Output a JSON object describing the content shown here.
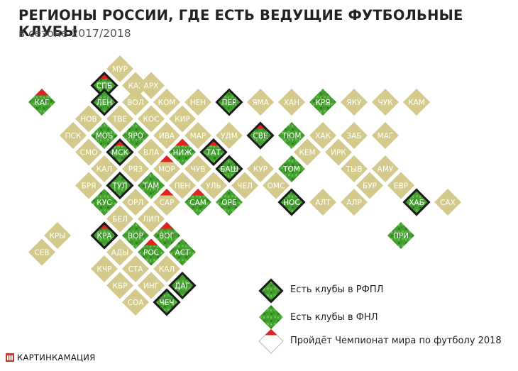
{
  "title": "РЕГИОНЫ РОССИИ, ГДЕ ЕСТЬ ВЕДУЩИЕ ФУТБОЛЬНЫЕ КЛУБЫ",
  "subtitle": "в сезоне 2017/2018",
  "legend": {
    "rfpl": "Есть клубы в РФПЛ",
    "fnl": "Есть клубы в ФНЛ",
    "wc": "Пройдёт Чемпионат мира по футболу 2018"
  },
  "footer": "КАРТИНКАМАЦИЯ",
  "colors": {
    "plain": "#d3ca8c",
    "green": "#45a032",
    "green_dark": "#2f7d22",
    "red": "#e0231f",
    "border": "#1b1b1b"
  },
  "regions": [
    {
      "label": "МУР",
      "col": 0,
      "row": 0,
      "status": "plain"
    },
    {
      "label": "СПБ",
      "col": -1,
      "row": 1,
      "status": "rfpl",
      "wc": true
    },
    {
      "label": "КАР",
      "col": 1,
      "row": 1,
      "status": "plain"
    },
    {
      "label": "АРХ",
      "col": 2,
      "row": 1,
      "status": "plain"
    },
    {
      "label": "КАГ",
      "col": -5,
      "row": 2,
      "status": "fnl",
      "wc": true
    },
    {
      "label": "ЛЕН",
      "col": -1,
      "row": 2,
      "status": "rfpl"
    },
    {
      "label": "ВОЛ",
      "col": 1,
      "row": 2,
      "status": "plain"
    },
    {
      "label": "КОМ",
      "col": 3,
      "row": 2,
      "status": "plain"
    },
    {
      "label": "НЕН",
      "col": 5,
      "row": 2,
      "status": "plain"
    },
    {
      "label": "ПЕР",
      "col": 7,
      "row": 2,
      "status": "rfpl"
    },
    {
      "label": "ЯМА",
      "col": 9,
      "row": 2,
      "status": "plain"
    },
    {
      "label": "ХАН",
      "col": 11,
      "row": 2,
      "status": "plain"
    },
    {
      "label": "КРЯ",
      "col": 13,
      "row": 2,
      "status": "fnl"
    },
    {
      "label": "ЯКУ",
      "col": 15,
      "row": 2,
      "status": "plain"
    },
    {
      "label": "ЧУК",
      "col": 17,
      "row": 2,
      "status": "plain"
    },
    {
      "label": "КАМ",
      "col": 19,
      "row": 2,
      "status": "plain"
    },
    {
      "label": "НОВ",
      "col": -2,
      "row": 3,
      "status": "plain"
    },
    {
      "label": "ТВЕ",
      "col": 0,
      "row": 3,
      "status": "plain"
    },
    {
      "label": "КОС",
      "col": 2,
      "row": 3,
      "status": "plain"
    },
    {
      "label": "КИР",
      "col": 4,
      "row": 3,
      "status": "plain"
    },
    {
      "label": "ПСК",
      "col": -3,
      "row": 4,
      "status": "plain"
    },
    {
      "label": "МОБ",
      "col": -1,
      "row": 4,
      "status": "fnl"
    },
    {
      "label": "ЯРО",
      "col": 1,
      "row": 4,
      "status": "fnl"
    },
    {
      "label": "ИВА",
      "col": 3,
      "row": 4,
      "status": "plain"
    },
    {
      "label": "МАР",
      "col": 5,
      "row": 4,
      "status": "plain"
    },
    {
      "label": "УДМ",
      "col": 7,
      "row": 4,
      "status": "plain"
    },
    {
      "label": "СВЕ",
      "col": 9,
      "row": 4,
      "status": "rfpl",
      "wc": true
    },
    {
      "label": "ТЮМ",
      "col": 11,
      "row": 4,
      "status": "fnl"
    },
    {
      "label": "ХАК",
      "col": 13,
      "row": 4,
      "status": "plain"
    },
    {
      "label": "ЗАБ",
      "col": 15,
      "row": 4,
      "status": "plain"
    },
    {
      "label": "МАГ",
      "col": 17,
      "row": 4,
      "status": "plain"
    },
    {
      "label": "СМО",
      "col": -2,
      "row": 5,
      "status": "plain"
    },
    {
      "label": "МСК",
      "col": 0,
      "row": 5,
      "status": "rfpl",
      "wc": true
    },
    {
      "label": "ВЛА",
      "col": 2,
      "row": 5,
      "status": "plain"
    },
    {
      "label": "НИЖ",
      "col": 4,
      "row": 5,
      "status": "fnl",
      "wc": true
    },
    {
      "label": "ТАТ",
      "col": 6,
      "row": 5,
      "status": "rfpl",
      "wc": true
    },
    {
      "label": "КЕМ",
      "col": 12,
      "row": 5,
      "status": "plain"
    },
    {
      "label": "ИРК",
      "col": 14,
      "row": 5,
      "status": "plain"
    },
    {
      "label": "КАЛ",
      "col": -1,
      "row": 6,
      "status": "plain"
    },
    {
      "label": "РЯЗ",
      "col": 1,
      "row": 6,
      "status": "plain"
    },
    {
      "label": "МОР",
      "col": 3,
      "row": 6,
      "status": "plain",
      "wc": true
    },
    {
      "label": "ЧУВ",
      "col": 5,
      "row": 6,
      "status": "plain"
    },
    {
      "label": "БАШ",
      "col": 7,
      "row": 6,
      "status": "rfpl"
    },
    {
      "label": "КУР",
      "col": 9,
      "row": 6,
      "status": "plain"
    },
    {
      "label": "ТОМ",
      "col": 11,
      "row": 6,
      "status": "fnl"
    },
    {
      "label": "ТЫВ",
      "col": 15,
      "row": 6,
      "status": "plain"
    },
    {
      "label": "АМУ",
      "col": 17,
      "row": 6,
      "status": "plain"
    },
    {
      "label": "БРЯ",
      "col": -2,
      "row": 7,
      "status": "plain"
    },
    {
      "label": "ТУЛ",
      "col": 0,
      "row": 7,
      "status": "rfpl"
    },
    {
      "label": "ТАМ",
      "col": 2,
      "row": 7,
      "status": "fnl"
    },
    {
      "label": "ПЕН",
      "col": 4,
      "row": 7,
      "status": "plain"
    },
    {
      "label": "УЛЬ",
      "col": 6,
      "row": 7,
      "status": "plain"
    },
    {
      "label": "ЧЕЛ",
      "col": 8,
      "row": 7,
      "status": "plain"
    },
    {
      "label": "ОМС",
      "col": 10,
      "row": 7,
      "status": "plain"
    },
    {
      "label": "БУР",
      "col": 16,
      "row": 7,
      "status": "plain"
    },
    {
      "label": "ЕВР",
      "col": 18,
      "row": 7,
      "status": "plain"
    },
    {
      "label": "КУС",
      "col": -1,
      "row": 8,
      "status": "fnl"
    },
    {
      "label": "ОРЛ",
      "col": 1,
      "row": 8,
      "status": "plain"
    },
    {
      "label": "САР",
      "col": 3,
      "row": 8,
      "status": "plain",
      "wc": true
    },
    {
      "label": "САМ",
      "col": 5,
      "row": 8,
      "status": "fnl",
      "wc": true
    },
    {
      "label": "ОРЕ",
      "col": 7,
      "row": 8,
      "status": "fnl"
    },
    {
      "label": "НОС",
      "col": 11,
      "row": 8,
      "status": "rfpl"
    },
    {
      "label": "АЛТ",
      "col": 13,
      "row": 8,
      "status": "plain"
    },
    {
      "label": "АЛР",
      "col": 15,
      "row": 8,
      "status": "plain"
    },
    {
      "label": "ХАБ",
      "col": 19,
      "row": 8,
      "status": "rfpl"
    },
    {
      "label": "САХ",
      "col": 21,
      "row": 8,
      "status": "plain"
    },
    {
      "label": "БЕЛ",
      "col": 0,
      "row": 9,
      "status": "plain"
    },
    {
      "label": "ЛИП",
      "col": 2,
      "row": 9,
      "status": "plain"
    },
    {
      "label": "КРЫ",
      "col": -4,
      "row": 10,
      "status": "plain"
    },
    {
      "label": "КРА",
      "col": -1,
      "row": 10,
      "status": "rfpl",
      "wc": true
    },
    {
      "label": "ВОР",
      "col": 1,
      "row": 10,
      "status": "fnl"
    },
    {
      "label": "ВОГ",
      "col": 3,
      "row": 10,
      "status": "fnl",
      "wc": true
    },
    {
      "label": "ПРИ",
      "col": 18,
      "row": 10,
      "status": "fnl"
    },
    {
      "label": "СЕВ",
      "col": -5,
      "row": 11,
      "status": "plain"
    },
    {
      "label": "АДЫ",
      "col": 0,
      "row": 11,
      "status": "plain"
    },
    {
      "label": "РОС",
      "col": 2,
      "row": 11,
      "status": "fnl",
      "wc": true
    },
    {
      "label": "АСТ",
      "col": 4,
      "row": 11,
      "status": "fnl"
    },
    {
      "label": "КЧР",
      "col": -1,
      "row": 12,
      "status": "plain"
    },
    {
      "label": "СТА",
      "col": 1,
      "row": 12,
      "status": "plain"
    },
    {
      "label": "КАЛ",
      "col": 3,
      "row": 12,
      "status": "plain"
    },
    {
      "label": "КБР",
      "col": 0,
      "row": 13,
      "status": "plain"
    },
    {
      "label": "ИНГ",
      "col": 2,
      "row": 13,
      "status": "plain"
    },
    {
      "label": "ДАГ",
      "col": 4,
      "row": 13,
      "status": "rfpl"
    },
    {
      "label": "СОА",
      "col": 1,
      "row": 14,
      "status": "plain"
    },
    {
      "label": "ЧЕЧ",
      "col": 3,
      "row": 14,
      "status": "rfpl"
    }
  ]
}
